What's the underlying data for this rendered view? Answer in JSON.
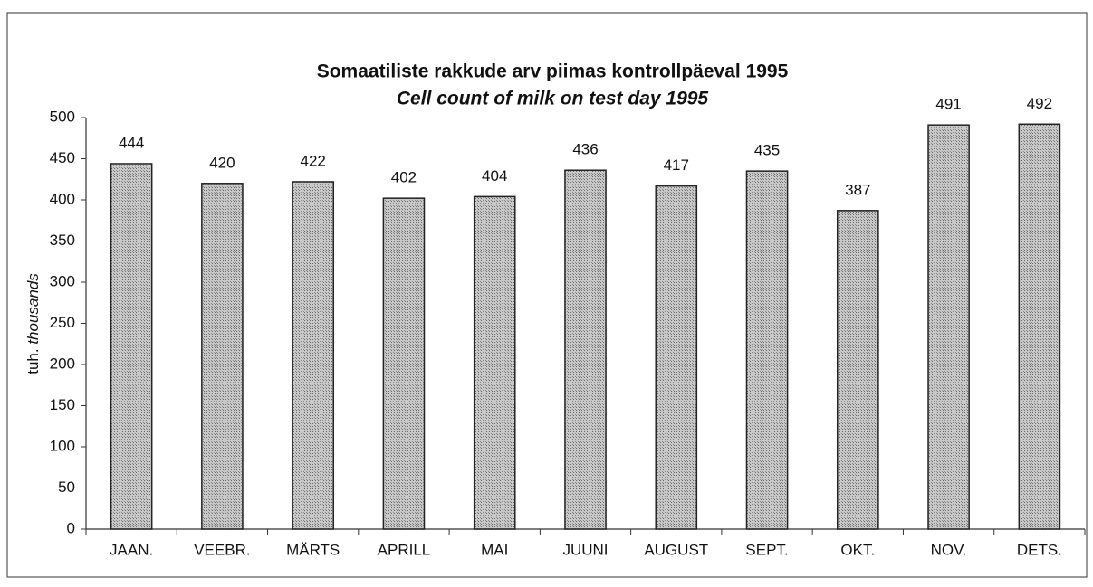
{
  "chart_data": {
    "type": "bar",
    "title": "Somaatiliste rakkude arv piimas kontrollpäeval 1995",
    "subtitle": "Cell count of milk on test day 1995",
    "ylabel": [
      "tuh.",
      "thousands"
    ],
    "categories": [
      "JAAN.",
      "VEEBR.",
      "MÄRTS",
      "APRILL",
      "MAI",
      "JUUNI",
      "AUGUST",
      "SEPT.",
      "OKT.",
      "NOV.",
      "DETS."
    ],
    "values": [
      444,
      420,
      422,
      402,
      404,
      436,
      417,
      435,
      387,
      491,
      492
    ],
    "color": "#a9a9a9",
    "ylim": [
      0,
      500
    ],
    "yticks": [
      0,
      50,
      100,
      150,
      200,
      250,
      300,
      350,
      400,
      450,
      500
    ],
    "grid": false
  }
}
